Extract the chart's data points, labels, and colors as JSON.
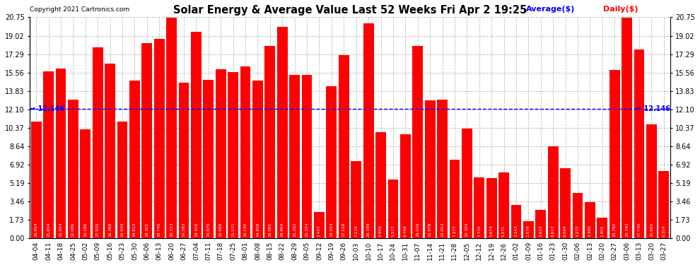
{
  "title": "Solar Energy & Average Value Last 52 Weeks Fri Apr 2 19:25",
  "copyright": "Copyright 2021 Cartronics.com",
  "legend_avg": "Average($)",
  "legend_daily": "Daily($)",
  "avg_line_value": 12.146,
  "avg_label": "→ 12.146",
  "bar_color": "#ff0000",
  "avg_line_color": "#0000ff",
  "avg_label_color": "#0000ff",
  "background_color": "#ffffff",
  "grid_color": "#bbbbbb",
  "yticks": [
    0.0,
    1.73,
    3.46,
    5.19,
    6.92,
    8.64,
    10.37,
    12.1,
    13.83,
    15.56,
    17.29,
    19.02,
    20.75
  ],
  "labels": [
    "04-04",
    "04-11",
    "04-18",
    "04-25",
    "05-02",
    "05-09",
    "05-16",
    "05-23",
    "05-30",
    "06-06",
    "06-13",
    "06-20",
    "06-27",
    "07-04",
    "07-11",
    "07-18",
    "07-25",
    "08-01",
    "08-08",
    "08-15",
    "08-22",
    "08-29",
    "09-05",
    "09-12",
    "09-19",
    "09-26",
    "10-03",
    "10-10",
    "10-17",
    "10-24",
    "10-31",
    "11-07",
    "11-14",
    "11-21",
    "11-28",
    "12-05",
    "12-12",
    "12-19",
    "12-26",
    "01-02",
    "01-09",
    "01-16",
    "01-23",
    "01-30",
    "02-06",
    "02-13",
    "02-20",
    "02-27",
    "03-06",
    "03-13",
    "03-20",
    "03-27"
  ],
  "values": [
    10.924,
    15.654,
    15.954,
    12.986,
    10.196,
    17.935,
    16.388,
    10.934,
    14.813,
    18.301,
    18.745,
    20.723,
    14.583,
    19.406,
    14.876,
    15.886,
    15.571,
    16.14,
    14.808,
    18.081,
    19.864,
    15.352,
    15.354,
    2.447,
    14.254,
    17.218,
    7.218,
    20.199,
    9.986,
    5.517,
    9.786,
    18.039,
    12.978,
    13.013,
    7.377,
    10.304,
    5.716,
    5.674,
    6.171,
    3.143,
    1.579,
    2.622,
    8.617,
    6.594,
    4.277,
    3.38,
    1.901,
    15.792,
    20.745,
    17.74,
    10.695,
    6.304
  ]
}
